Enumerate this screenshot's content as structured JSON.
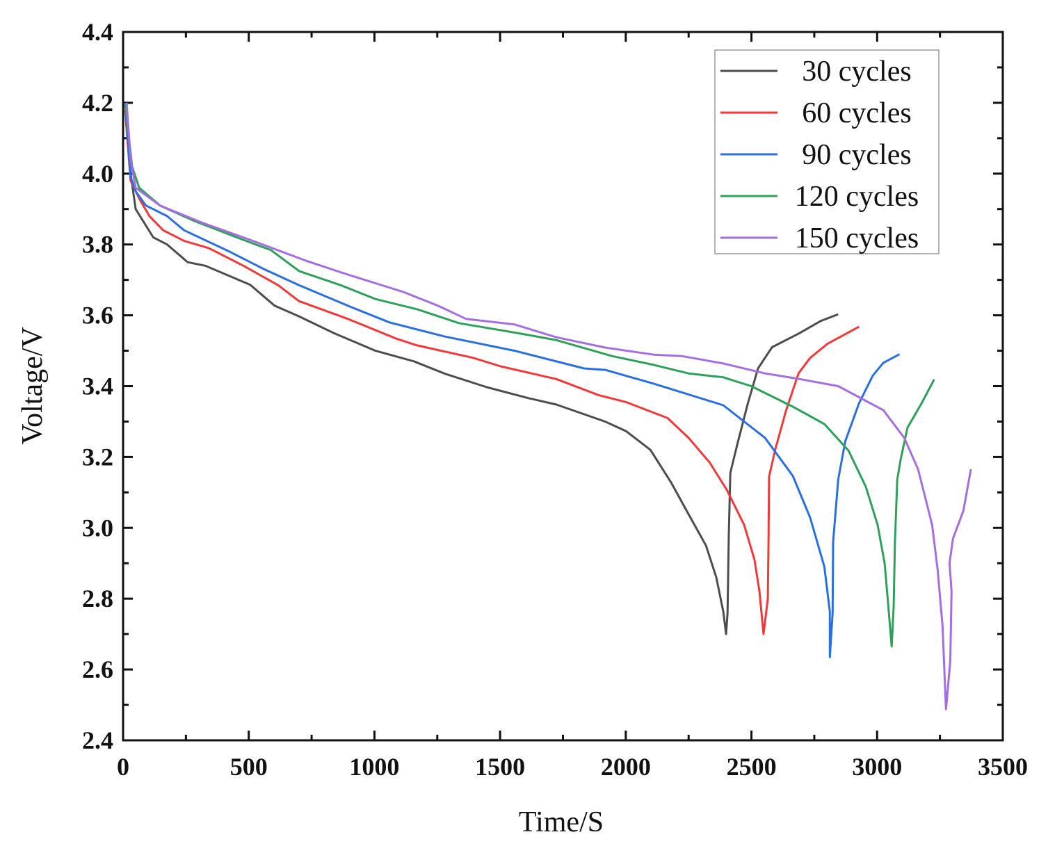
{
  "chart_data": {
    "type": "line",
    "title": "",
    "xlabel": "Time/S",
    "ylabel": "Voltage/V",
    "xlim": [
      0,
      3500
    ],
    "ylim": [
      2.4,
      4.4
    ],
    "xticks": [
      "0",
      "500",
      "1000",
      "1500",
      "2000",
      "2500",
      "3000",
      "3500"
    ],
    "yticks": [
      "2.4",
      "2.6",
      "2.8",
      "3.0",
      "3.2",
      "3.4",
      "3.6",
      "3.8",
      "4.0",
      "4.2",
      "4.4"
    ],
    "grid": false,
    "legend_position": "top-right",
    "series": [
      {
        "name": "30 cycles",
        "color": "#4d4d4d",
        "x": [
          8,
          30,
          50,
          120,
          175,
          257,
          327,
          506,
          603,
          700,
          838,
          1004,
          1157,
          1281,
          1447,
          1613,
          1724,
          1918,
          2001,
          2098,
          2181,
          2250,
          2319,
          2360,
          2388,
          2399,
          2405,
          2410,
          2416,
          2443,
          2485,
          2526,
          2582,
          2692,
          2775,
          2845
        ],
        "y": [
          4.196,
          4.0,
          3.9,
          3.82,
          3.8,
          3.75,
          3.74,
          3.686,
          3.627,
          3.597,
          3.55,
          3.5,
          3.47,
          3.435,
          3.397,
          3.366,
          3.348,
          3.3,
          3.273,
          3.22,
          3.127,
          3.038,
          2.95,
          2.86,
          2.763,
          2.7,
          2.76,
          2.98,
          3.155,
          3.234,
          3.35,
          3.45,
          3.51,
          3.55,
          3.584,
          3.603
        ]
      },
      {
        "name": "60 cycles",
        "color": "#f03a3a",
        "x": [
          8,
          30,
          64,
          105,
          160,
          243,
          340,
          479,
          617,
          700,
          894,
          1087,
          1170,
          1392,
          1502,
          1724,
          1890,
          2001,
          2166,
          2250,
          2333,
          2402,
          2471,
          2512,
          2532,
          2548,
          2565,
          2568,
          2570,
          2596,
          2637,
          2687,
          2734,
          2803,
          2928
        ],
        "y": [
          4.18,
          3.98,
          3.93,
          3.88,
          3.84,
          3.81,
          3.79,
          3.74,
          3.685,
          3.64,
          3.59,
          3.534,
          3.515,
          3.48,
          3.456,
          3.42,
          3.375,
          3.355,
          3.31,
          3.254,
          3.185,
          3.107,
          3.008,
          2.91,
          2.82,
          2.7,
          2.8,
          2.96,
          3.145,
          3.225,
          3.33,
          3.436,
          3.48,
          3.52,
          3.568
        ]
      },
      {
        "name": "90 cycles",
        "color": "#2a6fe0",
        "x": [
          8,
          30,
          50,
          91,
          175,
          243,
          423,
          562,
          700,
          894,
          1060,
          1281,
          1558,
          1834,
          1918,
          2111,
          2388,
          2554,
          2665,
          2734,
          2790,
          2812,
          2812,
          2823,
          2825,
          2845,
          2873,
          2928,
          2983,
          3025,
          3089
        ],
        "y": [
          4.2,
          3.99,
          3.95,
          3.91,
          3.88,
          3.84,
          3.78,
          3.73,
          3.685,
          3.627,
          3.58,
          3.54,
          3.5,
          3.45,
          3.446,
          3.407,
          3.346,
          3.254,
          3.146,
          3.028,
          2.89,
          2.763,
          2.635,
          2.76,
          2.96,
          3.136,
          3.244,
          3.352,
          3.43,
          3.466,
          3.49
        ]
      },
      {
        "name": "120 cycles",
        "color": "#2ea05a",
        "x": [
          8,
          36,
          64,
          147,
          285,
          479,
          589,
          700,
          866,
          1004,
          1170,
          1336,
          1585,
          1724,
          1945,
          2111,
          2250,
          2388,
          2499,
          2665,
          2790,
          2886,
          2955,
          3002,
          3030,
          3044,
          3058,
          3066,
          3071,
          3080,
          3094,
          3121,
          3177,
          3227
        ],
        "y": [
          4.196,
          4.02,
          3.96,
          3.91,
          3.866,
          3.813,
          3.784,
          3.725,
          3.685,
          3.646,
          3.617,
          3.578,
          3.548,
          3.53,
          3.485,
          3.46,
          3.436,
          3.425,
          3.4,
          3.342,
          3.293,
          3.218,
          3.116,
          3.008,
          2.9,
          2.783,
          2.665,
          2.78,
          2.96,
          3.136,
          3.195,
          3.283,
          3.352,
          3.419
        ]
      },
      {
        "name": "150 cycles",
        "color": "#a46ee0",
        "x": [
          14,
          30,
          50,
          147,
          313,
          506,
          728,
          894,
          1115,
          1253,
          1364,
          1558,
          1724,
          1918,
          2111,
          2222,
          2388,
          2554,
          2692,
          2845,
          3025,
          3108,
          3163,
          3191,
          3219,
          3241,
          3260,
          3274,
          3291,
          3296,
          3288,
          3302,
          3343,
          3373
        ],
        "y": [
          4.2,
          4.04,
          3.96,
          3.91,
          3.862,
          3.813,
          3.754,
          3.715,
          3.666,
          3.627,
          3.59,
          3.574,
          3.538,
          3.509,
          3.489,
          3.485,
          3.464,
          3.436,
          3.42,
          3.4,
          3.332,
          3.254,
          3.165,
          3.087,
          3.008,
          2.88,
          2.724,
          2.488,
          2.625,
          2.82,
          2.9,
          2.97,
          3.048,
          3.165
        ]
      }
    ]
  }
}
